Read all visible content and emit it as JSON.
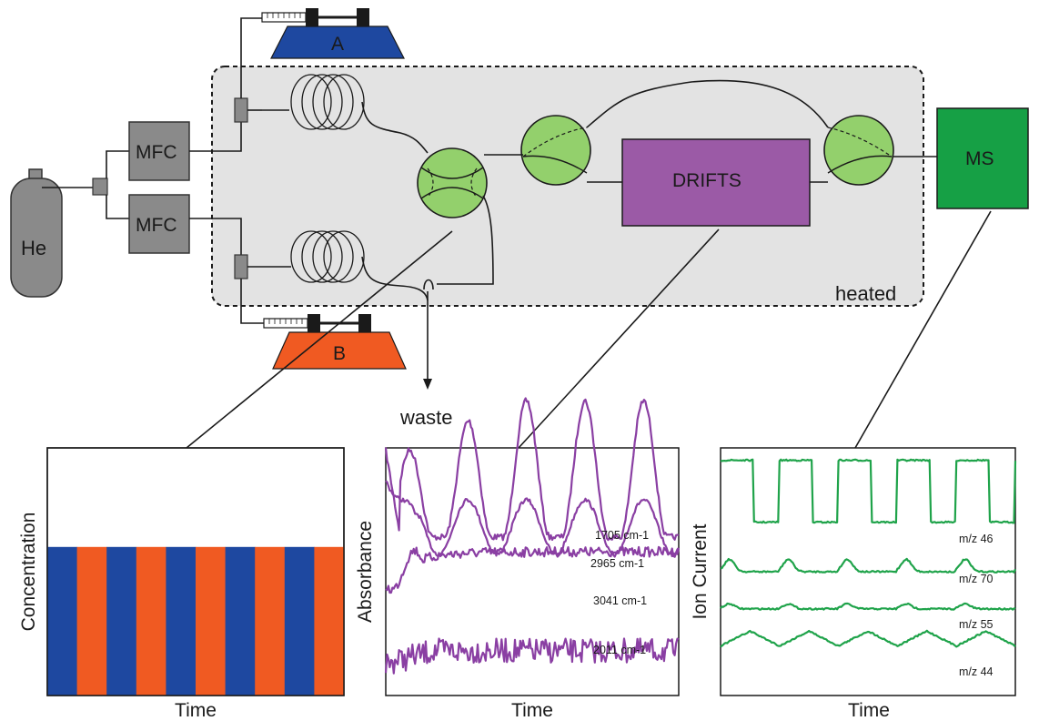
{
  "diagram": {
    "gas_cylinder": {
      "label": "He"
    },
    "mass_flow_controllers": [
      {
        "label": "MFC"
      },
      {
        "label": "MFC"
      }
    ],
    "syringe_pumps": [
      {
        "label": "A",
        "color": "#1e48a0"
      },
      {
        "label": "B",
        "color": "#f05a22"
      }
    ],
    "heated_zone": {
      "label": "heated"
    },
    "drifts": {
      "label": "DRIFTS",
      "color": "#9b5aa6"
    },
    "mass_spec": {
      "label": "MS",
      "color": "#16a045"
    },
    "waste": {
      "label": "waste"
    },
    "valve_color": "#93d06c"
  },
  "chart_data": [
    {
      "type": "bar",
      "panel": "concentration",
      "xlabel": "Time",
      "ylabel": "Concentration",
      "stripes": [
        "A",
        "B",
        "A",
        "B",
        "A",
        "B",
        "A",
        "B",
        "A",
        "B"
      ],
      "stripe_colors": {
        "A": "#1e48a0",
        "B": "#f05a22"
      },
      "level": 0.6
    },
    {
      "type": "line",
      "panel": "drifts",
      "xlabel": "Time",
      "ylabel": "Absorbance",
      "color": "#8a3fa3",
      "series": [
        {
          "name": "1705 cm-1",
          "baseline": 0.36,
          "amplitude": 0.55,
          "cycles": 5,
          "noise": 0.012,
          "shape": "peaks"
        },
        {
          "name": "2965 cm-1",
          "baseline": 0.43,
          "amplitude": 0.22,
          "cycles": 5,
          "noise": 0.008,
          "shape": "broad"
        },
        {
          "name": "3041 cm-1",
          "baseline": 0.56,
          "amplitude": 0.14,
          "cycles": 1,
          "noise": 0.02,
          "shape": "rise"
        },
        {
          "name": "2011 cm-1",
          "baseline": 0.87,
          "amplitude": 0.05,
          "cycles": 1,
          "noise": 0.05,
          "shape": "noise"
        }
      ]
    },
    {
      "type": "line",
      "panel": "ms",
      "xlabel": "Time",
      "ylabel": "Ion Current",
      "color": "#1fa34a",
      "series": [
        {
          "name": "m/z 46",
          "baseline": 0.3,
          "amplitude": 0.25,
          "cycles": 5,
          "shape": "square"
        },
        {
          "name": "m/z 70",
          "baseline": 0.5,
          "amplitude": 0.05,
          "cycles": 5,
          "shape": "bumps"
        },
        {
          "name": "m/z 55",
          "baseline": 0.65,
          "amplitude": 0.02,
          "cycles": 5,
          "shape": "bumps"
        },
        {
          "name": "m/z 44",
          "baseline": 0.8,
          "amplitude": 0.06,
          "cycles": 5,
          "shape": "wave"
        }
      ]
    }
  ]
}
